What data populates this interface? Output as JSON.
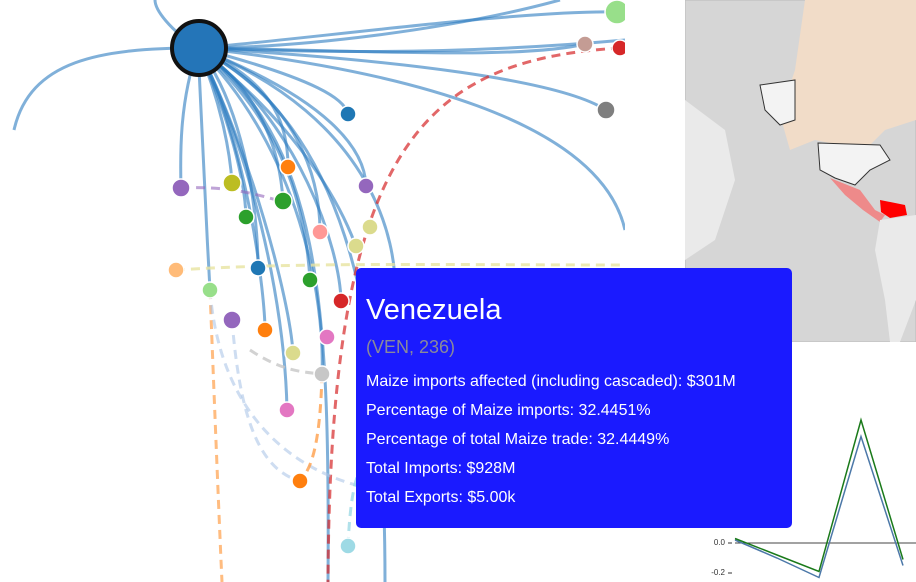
{
  "tooltip": {
    "title": "Venezuela",
    "subtitle": "(VEN, 236)",
    "lines": [
      "Maize imports affected (including cascaded): $301M",
      "Percentage of Maize imports: 32.4451%",
      "Percentage of total Maize trade: 32.4449%",
      "Total Imports: $928M",
      "Total Exports: $5.00k"
    ]
  },
  "chart_data": {
    "type": "line",
    "series": [
      {
        "name": null,
        "color": "#4c78a8",
        "values": [
          0.02,
          -0.1,
          -0.23,
          0.71,
          -0.15
        ]
      },
      {
        "name": null,
        "color": "#1a7a1a",
        "values": [
          0.03,
          -0.08,
          -0.19,
          0.82,
          -0.11
        ]
      }
    ],
    "ylim": [
      -0.25,
      1.0
    ],
    "yticks": [
      {
        "value": 0,
        "label": "0.0"
      },
      {
        "value": -0.2,
        "label": "-0.2"
      }
    ]
  }
}
